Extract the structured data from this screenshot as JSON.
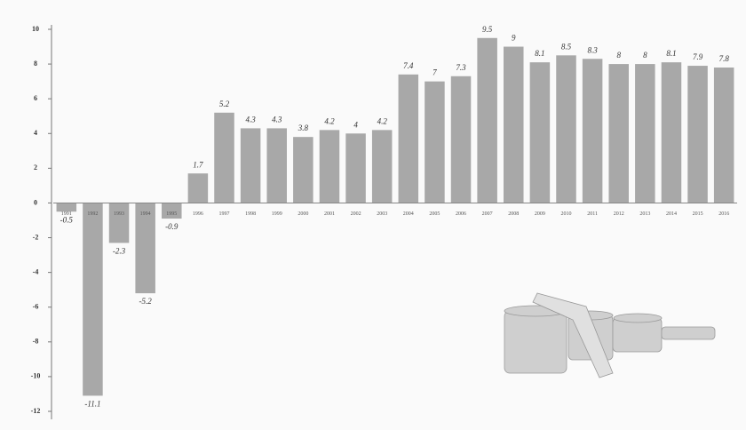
{
  "chart_data": {
    "type": "bar",
    "categories": [
      "1991",
      "1992",
      "1993",
      "1994",
      "1995",
      "1996",
      "1997",
      "1998",
      "1999",
      "2000",
      "2001",
      "2002",
      "2003",
      "2004",
      "2005",
      "2006",
      "2007",
      "2008",
      "2009",
      "2010",
      "2011",
      "2012",
      "2013",
      "2014",
      "2015",
      "2016"
    ],
    "values": [
      -0.5,
      -11.1,
      -2.3,
      -5.2,
      -0.9,
      1.7,
      5.2,
      4.3,
      4.3,
      3.8,
      4.2,
      4.0,
      4.2,
      7.4,
      7.0,
      7.3,
      9.5,
      9.0,
      8.1,
      8.5,
      8.3,
      8.0,
      8.0,
      8.1,
      7.9,
      7.8
    ],
    "color": "#a8a8a8",
    "ylim": [
      -12,
      10
    ],
    "yticks": [
      -12,
      -10,
      -8,
      -6,
      -4,
      -2,
      0,
      2,
      4,
      6,
      8,
      10
    ]
  }
}
